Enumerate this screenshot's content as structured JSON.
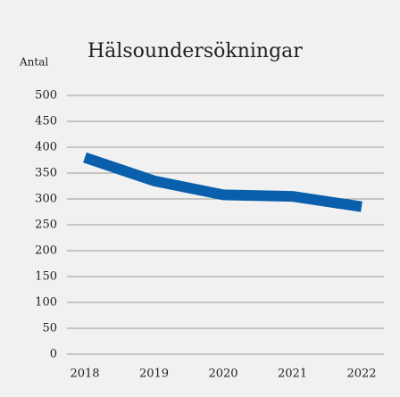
{
  "chart_data": {
    "type": "line",
    "title": "Hälsoundersökningar",
    "y_label": "Antal",
    "categories": [
      "2018",
      "2019",
      "2020",
      "2021",
      "2022"
    ],
    "series": [
      {
        "name": "Hälsoundersökningar",
        "color": "#0a5fad",
        "values": [
          380,
          335,
          308,
          305,
          285
        ]
      }
    ],
    "ylim": [
      0,
      500
    ],
    "yticks": [
      0,
      50,
      100,
      150,
      200,
      250,
      300,
      350,
      400,
      450,
      500
    ],
    "grid": true
  }
}
